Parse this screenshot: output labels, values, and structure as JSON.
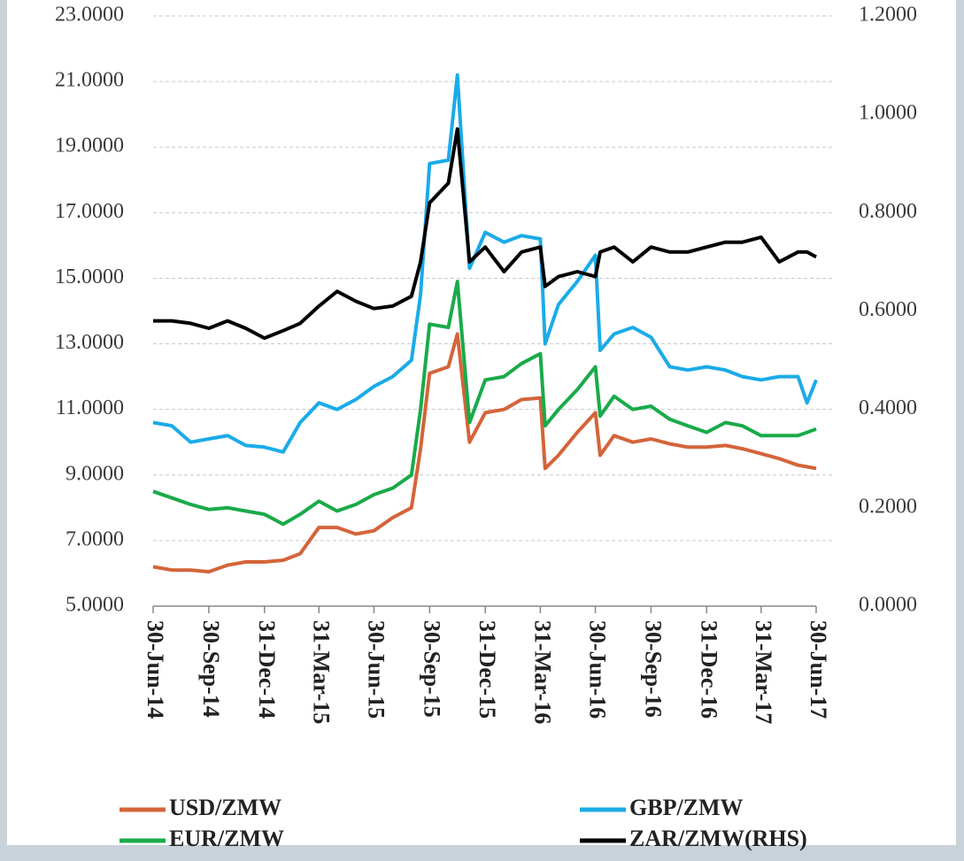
{
  "chart_data": {
    "type": "line",
    "x": [
      "2014-06-30",
      "2014-07-31",
      "2014-08-31",
      "2014-09-30",
      "2014-10-31",
      "2014-11-30",
      "2014-12-31",
      "2015-01-31",
      "2015-02-28",
      "2015-03-31",
      "2015-04-30",
      "2015-05-31",
      "2015-06-30",
      "2015-07-31",
      "2015-08-31",
      "2015-09-15",
      "2015-09-30",
      "2015-10-31",
      "2015-11-15",
      "2015-12-05",
      "2015-12-31",
      "2016-01-31",
      "2016-02-29",
      "2016-03-31",
      "2016-04-08",
      "2016-04-30",
      "2016-05-31",
      "2016-06-30",
      "2016-07-08",
      "2016-07-31",
      "2016-08-31",
      "2016-09-30",
      "2016-10-31",
      "2016-11-30",
      "2016-12-31",
      "2017-01-31",
      "2017-02-28",
      "2017-03-31",
      "2017-04-30",
      "2017-05-31",
      "2017-06-15",
      "2017-06-30"
    ],
    "series": [
      {
        "name": "USD/ZMW",
        "color": "#d4643a",
        "values": [
          6.2,
          6.1,
          6.1,
          6.05,
          6.25,
          6.35,
          6.35,
          6.4,
          6.6,
          7.4,
          7.4,
          7.2,
          7.3,
          7.7,
          8.0,
          9.8,
          12.1,
          12.3,
          13.3,
          10.0,
          10.9,
          11.0,
          11.3,
          11.35,
          9.2,
          9.6,
          10.3,
          10.9,
          9.6,
          10.2,
          10.0,
          10.1,
          9.95,
          9.85,
          9.85,
          9.9,
          9.8,
          9.65,
          9.5,
          9.3,
          9.25,
          9.2
        ]
      },
      {
        "name": "GBP/ZMW",
        "color": "#1aabe8",
        "values": [
          10.6,
          10.5,
          10.0,
          10.1,
          10.2,
          9.9,
          9.85,
          9.7,
          10.6,
          11.2,
          11.0,
          11.3,
          11.7,
          12.0,
          12.5,
          14.5,
          18.5,
          18.6,
          21.2,
          15.3,
          16.4,
          16.1,
          16.3,
          16.2,
          13.0,
          14.2,
          14.9,
          15.7,
          12.8,
          13.3,
          13.5,
          13.2,
          12.3,
          12.2,
          12.3,
          12.2,
          12.0,
          11.9,
          12.0,
          12.0,
          11.2,
          11.9
        ]
      },
      {
        "name": "EUR/ZMW",
        "color": "#1aaa4a",
        "values": [
          8.5,
          8.3,
          8.1,
          7.95,
          8.0,
          7.9,
          7.8,
          7.5,
          7.8,
          8.2,
          7.9,
          8.1,
          8.4,
          8.6,
          9.0,
          11.0,
          13.6,
          13.5,
          14.9,
          10.6,
          11.9,
          12.0,
          12.4,
          12.7,
          10.5,
          11.0,
          11.6,
          12.3,
          10.8,
          11.4,
          11.0,
          11.1,
          10.7,
          10.5,
          10.3,
          10.6,
          10.5,
          10.2,
          10.2,
          10.2,
          10.3,
          10.4
        ]
      },
      {
        "name": "ZAR/ZMW(RHS)",
        "color": "#000000",
        "axis": "y2",
        "values": [
          0.58,
          0.58,
          0.575,
          0.565,
          0.58,
          0.565,
          0.545,
          0.56,
          0.575,
          0.61,
          0.64,
          0.62,
          0.605,
          0.61,
          0.63,
          0.7,
          0.82,
          0.86,
          0.97,
          0.7,
          0.73,
          0.68,
          0.72,
          0.73,
          0.65,
          0.67,
          0.68,
          0.67,
          0.72,
          0.73,
          0.7,
          0.73,
          0.72,
          0.72,
          0.73,
          0.74,
          0.74,
          0.75,
          0.7,
          0.72,
          0.72,
          0.71
        ]
      }
    ],
    "xlim": [
      "2014-06-30",
      "2017-06-30"
    ],
    "xticks": [
      {
        "value": "2014-06-30",
        "label": "30-Jun-14"
      },
      {
        "value": "2014-09-30",
        "label": "30-Sep-14"
      },
      {
        "value": "2014-12-31",
        "label": "31-Dec-14"
      },
      {
        "value": "2015-03-31",
        "label": "31-Mar-15"
      },
      {
        "value": "2015-06-30",
        "label": "30-Jun-15"
      },
      {
        "value": "2015-09-30",
        "label": "30-Sep-15"
      },
      {
        "value": "2015-12-31",
        "label": "31-Dec-15"
      },
      {
        "value": "2016-03-31",
        "label": "31-Mar-16"
      },
      {
        "value": "2016-06-30",
        "label": "30-Jun-16"
      },
      {
        "value": "2016-09-30",
        "label": "30-Sep-16"
      },
      {
        "value": "2016-12-31",
        "label": "31-Dec-16"
      },
      {
        "value": "2017-03-31",
        "label": "31-Mar-17"
      },
      {
        "value": "2017-06-30",
        "label": "30-Jun-17"
      }
    ],
    "ylim": [
      5,
      23
    ],
    "yticks": [
      {
        "value": 5,
        "label": "5.0000"
      },
      {
        "value": 7,
        "label": "7.0000"
      },
      {
        "value": 9,
        "label": "9.0000"
      },
      {
        "value": 11,
        "label": "11.0000"
      },
      {
        "value": 13,
        "label": "13.0000"
      },
      {
        "value": 15,
        "label": "15.0000"
      },
      {
        "value": 17,
        "label": "17.0000"
      },
      {
        "value": 19,
        "label": "19.0000"
      },
      {
        "value": 21,
        "label": "21.0000"
      },
      {
        "value": 23,
        "label": "23.0000"
      }
    ],
    "y2lim": [
      0,
      1.2
    ],
    "y2ticks": [
      {
        "value": 0,
        "label": "0.0000"
      },
      {
        "value": 0.2,
        "label": "0.2000"
      },
      {
        "value": 0.4,
        "label": "0.4000"
      },
      {
        "value": 0.6,
        "label": "0.6000"
      },
      {
        "value": 0.8,
        "label": "0.8000"
      },
      {
        "value": 1.0,
        "label": "1.0000"
      },
      {
        "value": 1.2,
        "label": "1.2000"
      }
    ],
    "grid": true
  }
}
